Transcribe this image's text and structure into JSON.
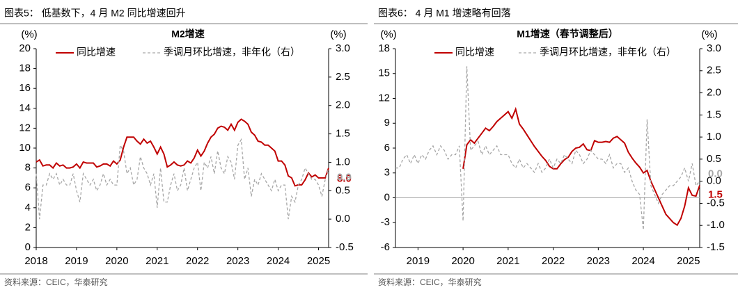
{
  "chart_data": [
    {
      "type": "line",
      "header": "图表5：  低基数下，4 月 M2 同比增速回升",
      "title": "M2增速",
      "source": "资料来源：CEIC，华泰研究",
      "ylabel": "(%)",
      "y2label": "(%)",
      "categories": [
        "2018",
        null,
        null,
        null,
        null,
        null,
        null,
        null,
        null,
        null,
        null,
        null,
        "2019",
        null,
        null,
        null,
        null,
        null,
        null,
        null,
        null,
        null,
        null,
        null,
        "2020",
        null,
        null,
        null,
        null,
        null,
        null,
        null,
        null,
        null,
        null,
        null,
        "2021",
        null,
        null,
        null,
        null,
        null,
        null,
        null,
        null,
        null,
        null,
        null,
        "2022",
        null,
        null,
        null,
        null,
        null,
        null,
        null,
        null,
        null,
        null,
        null,
        "2023",
        null,
        null,
        null,
        null,
        null,
        null,
        null,
        null,
        null,
        null,
        null,
        "2024",
        null,
        null,
        null,
        null,
        null,
        null,
        null,
        null,
        null,
        null,
        null,
        "2025",
        null,
        null,
        null
      ],
      "series": [
        {
          "name": "同比增速",
          "color": "#c00000",
          "style": "solid",
          "axis": "y",
          "end_label": "8.0",
          "values": [
            8.6,
            8.8,
            8.2,
            8.3,
            8.3,
            8.0,
            8.5,
            8.2,
            8.3,
            8.0,
            8.0,
            8.1,
            8.4,
            8.0,
            8.6,
            8.5,
            8.5,
            8.5,
            8.1,
            8.2,
            8.4,
            8.4,
            8.2,
            8.7,
            8.4,
            8.8,
            10.1,
            11.1,
            11.1,
            11.1,
            10.7,
            10.4,
            10.9,
            10.5,
            10.7,
            10.1,
            9.4,
            10.1,
            9.4,
            8.1,
            8.3,
            8.6,
            8.3,
            8.2,
            8.3,
            8.7,
            8.5,
            9.0,
            9.8,
            9.2,
            9.7,
            10.5,
            11.1,
            11.4,
            12.0,
            12.2,
            12.1,
            11.8,
            12.4,
            11.8,
            12.6,
            12.9,
            12.7,
            12.4,
            11.6,
            11.3,
            10.7,
            10.6,
            10.3,
            10.3,
            10.0,
            9.7,
            8.7,
            8.7,
            8.3,
            7.2,
            7.0,
            6.2,
            6.3,
            6.3,
            6.8,
            7.5,
            7.1,
            7.3,
            7.0,
            7.0,
            7.0,
            8.0
          ]
        },
        {
          "name": "季调月环比增速，非年化（右）",
          "color": "#a6a6a6",
          "style": "dashed",
          "axis": "y2",
          "end_label": "0.9",
          "values": [
            0.8,
            0.0,
            0.6,
            0.6,
            0.8,
            0.7,
            0.8,
            0.6,
            0.7,
            0.6,
            0.6,
            0.8,
            0.5,
            0.3,
            0.8,
            0.7,
            0.6,
            0.7,
            0.5,
            0.6,
            0.8,
            0.6,
            0.7,
            0.6,
            0.6,
            1.3,
            1.2,
            0.8,
            0.9,
            0.6,
            0.7,
            1.1,
            0.9,
            0.8,
            0.6,
            0.8,
            0.2,
            0.9,
            0.3,
            0.3,
            0.6,
            0.8,
            0.5,
            0.6,
            0.9,
            0.5,
            0.7,
            0.9,
            1.0,
            0.5,
            1.0,
            0.9,
            1.1,
            0.8,
            1.2,
            0.9,
            0.8,
            1.1,
            1.0,
            0.7,
            1.3,
            1.4,
            0.7,
            0.9,
            0.4,
            0.7,
            0.6,
            0.8,
            0.7,
            0.6,
            0.5,
            0.7,
            0.5,
            0.6,
            0.6,
            0.0,
            0.4,
            0.3,
            0.6,
            0.7,
            0.9,
            0.8,
            0.7,
            0.7,
            0.6,
            0.4,
            0.7,
            0.9
          ]
        }
      ],
      "ylim": [
        0,
        20
      ],
      "yticks": [
        0,
        2,
        4,
        6,
        8,
        10,
        12,
        14,
        16,
        18,
        20
      ],
      "y2lim": [
        -0.5,
        3.0
      ],
      "y2ticks": [
        -0.5,
        {
          "value": 0,
          "label": "0.0"
        },
        0.5,
        {
          "value": 1,
          "label": "1.0"
        },
        1.5,
        {
          "value": 2,
          "label": "2.0"
        },
        2.5,
        {
          "value": 3,
          "label": "3.0"
        }
      ],
      "zero_line": false
    },
    {
      "type": "line",
      "header": "图表6：  4 月 M1 增速略有回落",
      "title": "M1增速（春节调整后）",
      "source": "资料来源：CEIC，华泰研究",
      "ylabel": "(%)",
      "y2label": "(%)",
      "categories": [
        null,
        null,
        null,
        null,
        null,
        null,
        "2019",
        null,
        null,
        null,
        null,
        null,
        null,
        null,
        null,
        null,
        null,
        null,
        "2020",
        null,
        null,
        null,
        null,
        null,
        null,
        null,
        null,
        null,
        null,
        null,
        "2021",
        null,
        null,
        null,
        null,
        null,
        null,
        null,
        null,
        null,
        null,
        null,
        "2022",
        null,
        null,
        null,
        null,
        null,
        null,
        null,
        null,
        null,
        null,
        null,
        "2023",
        null,
        null,
        null,
        null,
        null,
        null,
        null,
        null,
        null,
        null,
        null,
        "2024",
        null,
        null,
        null,
        null,
        null,
        null,
        null,
        null,
        null,
        null,
        null,
        "2025",
        null,
        null,
        null
      ],
      "series": [
        {
          "name": "同比增速",
          "color": "#c00000",
          "style": "solid",
          "axis": "y",
          "end_label": "1.5",
          "values": [
            null,
            null,
            null,
            null,
            null,
            null,
            null,
            null,
            null,
            null,
            null,
            null,
            null,
            null,
            null,
            null,
            null,
            null,
            3.5,
            6.4,
            7.0,
            6.6,
            7.2,
            7.8,
            8.4,
            8.1,
            8.6,
            9.2,
            9.6,
            10.0,
            10.4,
            9.6,
            10.7,
            8.9,
            8.3,
            7.6,
            6.9,
            6.2,
            5.6,
            5.0,
            4.5,
            3.8,
            3.5,
            3.5,
            4.1,
            4.6,
            4.9,
            5.6,
            6.0,
            6.1,
            6.5,
            5.8,
            5.7,
            6.9,
            6.7,
            6.7,
            6.8,
            6.7,
            7.2,
            7.4,
            7.0,
            6.6,
            5.5,
            4.8,
            4.2,
            3.7,
            3.0,
            3.3,
            2.0,
            1.0,
            0.0,
            -1.0,
            -2.0,
            -2.5,
            -3.0,
            -3.3,
            -2.5,
            -1.0,
            1.2,
            0.3,
            0.2,
            1.5
          ]
        },
        {
          "name": "季调月环比增速，非年化（右）",
          "color": "#a6a6a6",
          "style": "dashed",
          "axis": "y2",
          "end_label": "0.0",
          "values": [
            0.3,
            0.3,
            0.5,
            0.6,
            0.4,
            0.6,
            0.4,
            0.6,
            0.5,
            0.7,
            0.8,
            0.6,
            0.8,
            0.7,
            0.5,
            0.6,
            0.6,
            0.8,
            -0.9,
            2.6,
            0.7,
            0.8,
            0.9,
            0.6,
            0.8,
            0.6,
            0.7,
            0.8,
            0.6,
            0.6,
            0.6,
            0.4,
            0.3,
            0.5,
            0.3,
            0.4,
            0.3,
            0.2,
            0.4,
            0.2,
            0.3,
            0.5,
            0.3,
            0.5,
            0.4,
            0.6,
            0.5,
            0.4,
            0.7,
            0.6,
            0.4,
            0.5,
            0.7,
            0.6,
            0.5,
            0.5,
            0.4,
            0.6,
            0.3,
            0.4,
            0.4,
            0.2,
            0.3,
            0.0,
            -0.2,
            -0.3,
            -1.1,
            1.4,
            -0.1,
            -0.3,
            -0.5,
            -0.3,
            -0.2,
            -0.1,
            -0.1,
            0.0,
            0.1,
            0.3,
            0.0,
            0.4,
            -0.1,
            0.0
          ]
        }
      ],
      "ylim": [
        -6,
        18
      ],
      "yticks": [
        -6,
        -3,
        0,
        3,
        6,
        9,
        12,
        15,
        18
      ],
      "y2lim": [
        -1.5,
        3.0
      ],
      "y2ticks": [
        -1.5,
        {
          "value": -1,
          "label": "-1.0"
        },
        -0.5,
        {
          "value": 0,
          "label": "0.0"
        },
        0.5,
        {
          "value": 1,
          "label": "1.0"
        },
        1.5,
        {
          "value": 2,
          "label": "2.0"
        },
        2.5,
        {
          "value": 3,
          "label": "3.0"
        }
      ],
      "zero_line": true
    }
  ]
}
